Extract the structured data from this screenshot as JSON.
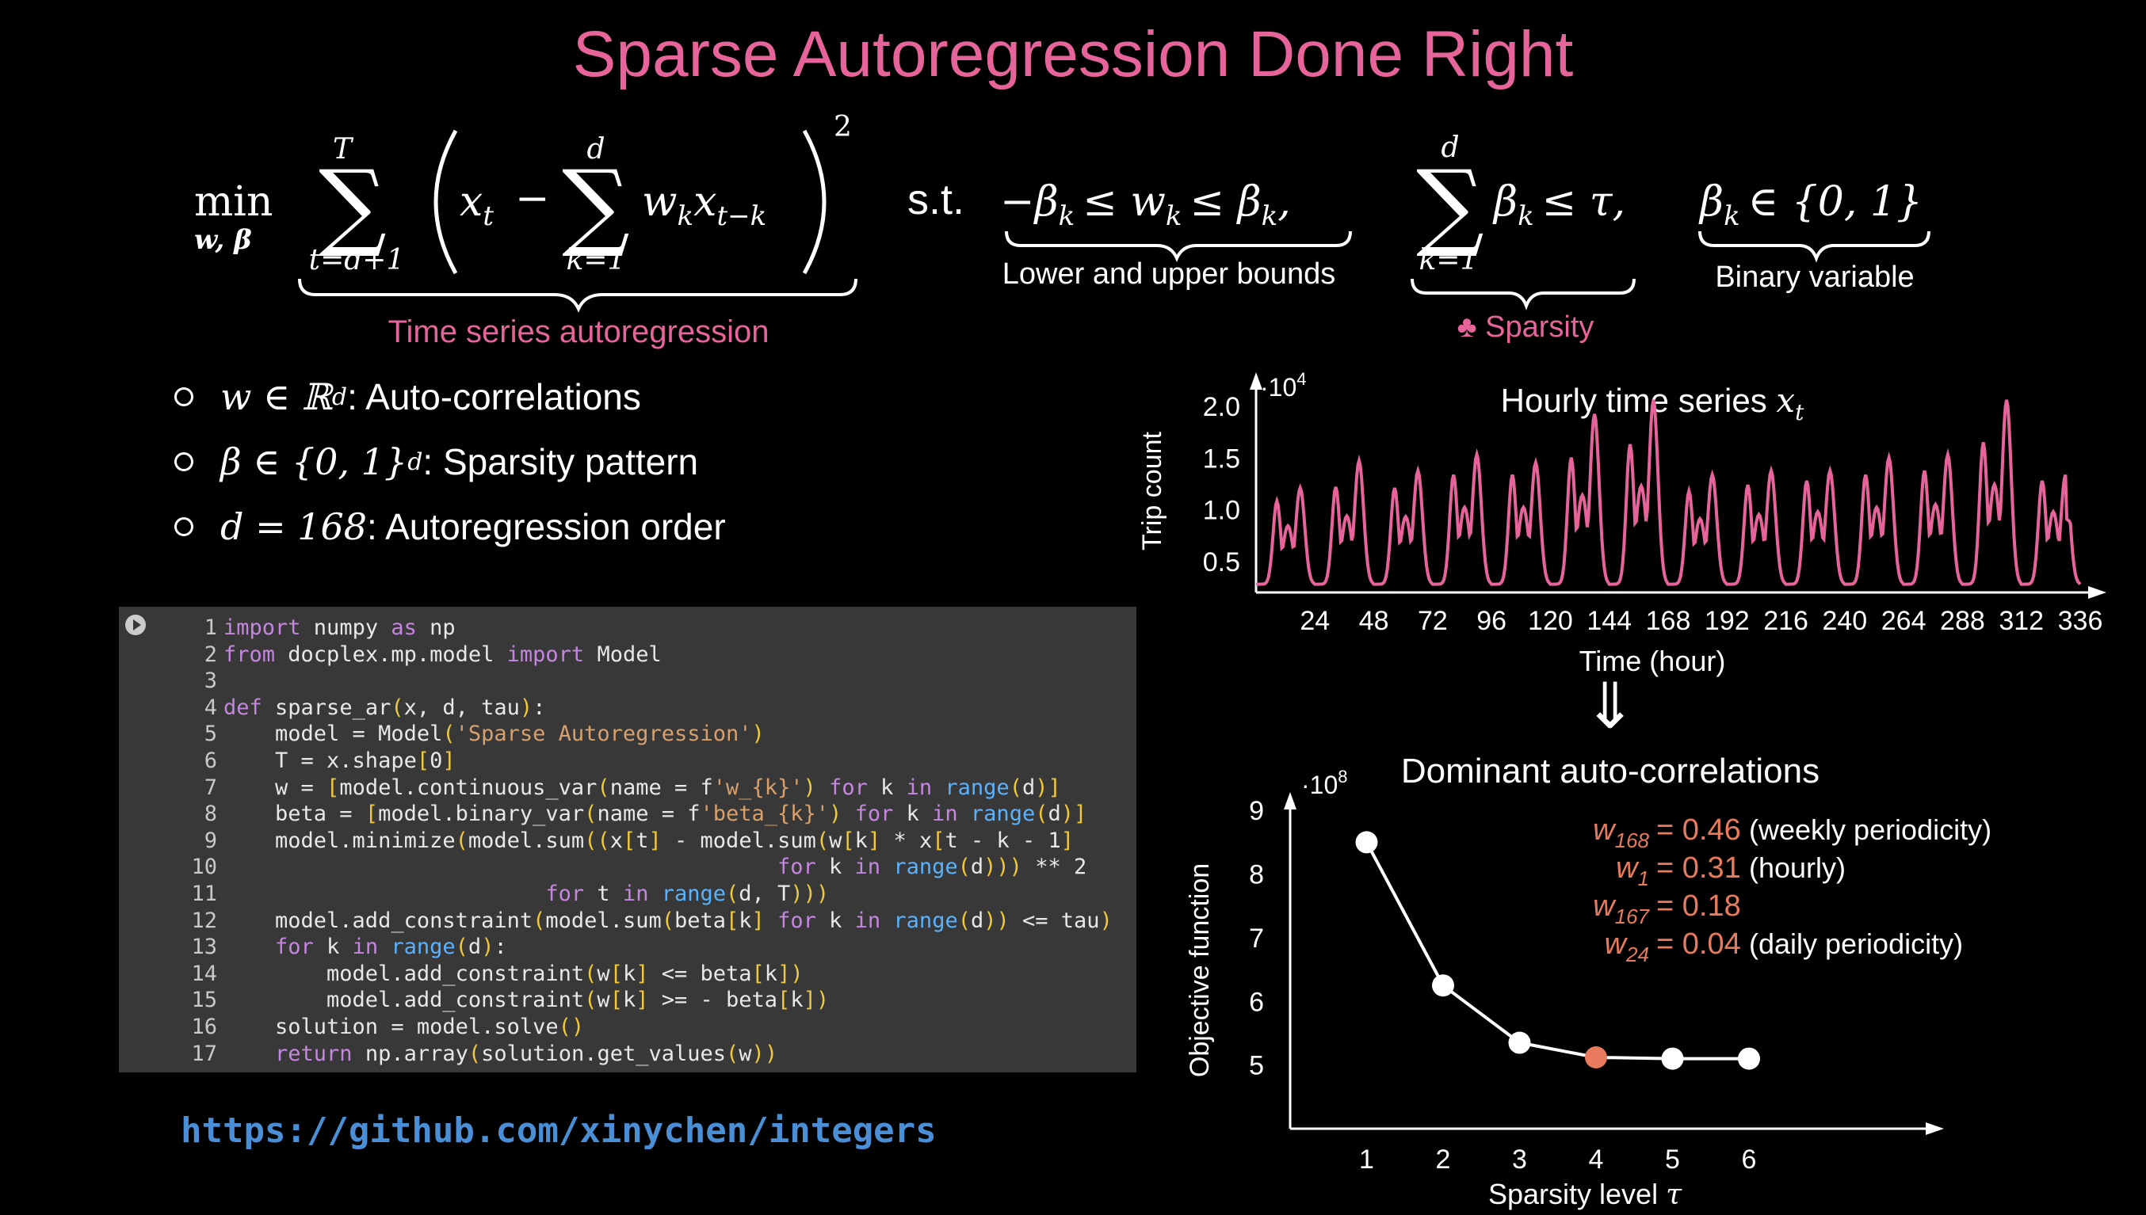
{
  "title": "Sparse Autoregression Done Right",
  "formula": {
    "min": "min",
    "min_sub": "w, β",
    "sum_top": "T",
    "sum_bottom": "t=d+1",
    "inner_top": "d",
    "inner_bottom": "k=1",
    "x_t": "x",
    "x_t_sub": "t",
    "minus": "−",
    "w_k": "w",
    "w_k_sub": "k",
    "x_tk": "x",
    "x_tk_sub": "t−k",
    "power": "2",
    "st": "s.t.",
    "bounds": "−β",
    "bounds_mid": "≤ w",
    "bounds_end": "≤ β",
    "k_sub": "k",
    "comma": ",",
    "sparsity_top": "d",
    "sparsity_bottom": "k=1",
    "sparsity_beta": "β",
    "sparsity_rest": "≤ τ,",
    "binary_beta": "β",
    "binary_rest": "∈ {0, 1}",
    "label_autoreg": "Time series autoregression",
    "label_bounds": "Lower and upper bounds",
    "label_sparsity": "♣ Sparsity",
    "label_binary": "Binary variable"
  },
  "bullets": [
    {
      "sym": "w ∈ ℝ",
      "sup": "d",
      "text": ": Auto-correlations"
    },
    {
      "sym": "β ∈ {0, 1}",
      "sup": "d",
      "text": ": Sparsity pattern"
    },
    {
      "sym": "d = 168",
      "sup": "",
      "text": ": Autoregression order"
    }
  ],
  "code_lines": [
    "import numpy as np",
    "from docplex.mp.model import Model",
    "",
    "def sparse_ar(x, d, tau):",
    "    model = Model('Sparse Autoregression')",
    "    T = x.shape[0]",
    "    w = [model.continuous_var(name = f'w_{k}') for k in range(d)]",
    "    beta = [model.binary_var(name = f'beta_{k}') for k in range(d)]",
    "    model.minimize(model.sum((x[t] - model.sum(w[k] * x[t - k - 1]",
    "                                           for k in range(d))) ** 2",
    "                         for t in range(d, T)))",
    "    model.add_constraint(model.sum(beta[k] for k in range(d)) <= tau)",
    "    for k in range(d):",
    "        model.add_constraint(w[k] <= beta[k])",
    "        model.add_constraint(w[k] >= - beta[k])",
    "    solution = model.solve()",
    "    return np.array(solution.get_values(w))"
  ],
  "link": "https://github.com/xinychen/integers",
  "arrow": "⇓",
  "colors": {
    "accent": "#e7649a",
    "highlight": "#e87a5d",
    "link": "#4a8fd6"
  },
  "chart_data": [
    {
      "type": "line",
      "title_text": "Hourly time series ",
      "title_var": "x",
      "title_sub": "t",
      "xlabel": "Time (hour)",
      "ylabel": "Trip count",
      "multiplier": "·10",
      "multiplier_exp": "4",
      "x_ticks": [
        24,
        48,
        72,
        96,
        120,
        144,
        168,
        192,
        216,
        240,
        264,
        288,
        312,
        336
      ],
      "y_ticks": [
        0.5,
        1.0,
        1.5,
        2.0
      ],
      "y_tick_labels": [
        "0.5",
        "1.0",
        "1.5",
        "2.0"
      ],
      "xlim": [
        0,
        336
      ],
      "ylim": [
        0.2,
        2.1
      ],
      "peaks": [
        [
          0.82,
          0.95
        ],
        [
          0.96,
          1.22
        ],
        [
          0.95,
          1.12
        ],
        [
          1.08,
          1.28
        ],
        [
          1.08,
          1.2
        ],
        [
          1.25,
          1.68
        ],
        [
          1.38,
          1.82
        ],
        [
          0.92,
          1.08
        ],
        [
          0.98,
          1.12
        ],
        [
          1.02,
          1.12
        ],
        [
          1.08,
          1.25
        ],
        [
          1.12,
          1.28
        ],
        [
          1.4,
          1.82
        ],
        [
          1.02,
          1.08
        ]
      ]
    },
    {
      "type": "line",
      "title": "Dominant auto-correlations",
      "xlabel": "Sparsity level ",
      "xlabel_var": "τ",
      "ylabel": "Objective function",
      "multiplier": "·10",
      "multiplier_exp": "8",
      "x": [
        1,
        2,
        3,
        4,
        5,
        6
      ],
      "y": [
        8.5,
        6.25,
        5.35,
        5.12,
        5.1,
        5.1
      ],
      "highlight_index": 3,
      "x_ticks": [
        1,
        2,
        3,
        4,
        5,
        6
      ],
      "y_ticks": [
        5,
        6,
        7,
        8,
        9
      ],
      "xlim": [
        0,
        7.5
      ],
      "ylim": [
        4.0,
        9.6
      ],
      "annotations": [
        {
          "var": "w",
          "sub": "168",
          "value": "= 0.46",
          "note": " (weekly periodicity)"
        },
        {
          "var": "w",
          "sub": "1",
          "value": "= 0.31",
          "note": " (hourly)"
        },
        {
          "var": "w",
          "sub": "167",
          "value": "= 0.18",
          "note": ""
        },
        {
          "var": "w",
          "sub": "24",
          "value": "= 0.04",
          "note": " (daily periodicity)"
        }
      ]
    }
  ]
}
